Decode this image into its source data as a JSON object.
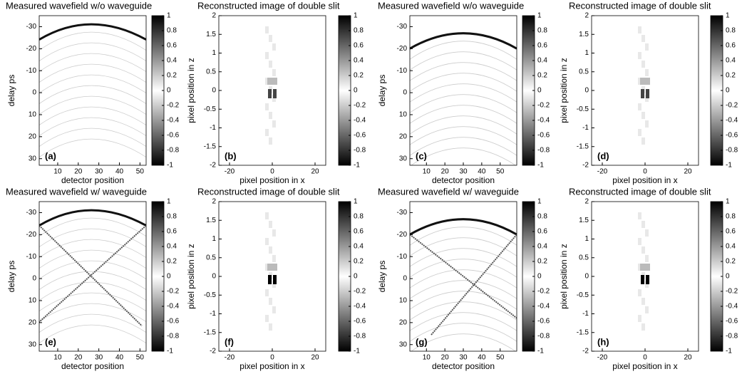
{
  "chart_data": [
    {
      "type": "heatmap",
      "title": "Measured wavefield w/o waveguide",
      "xlabel": "detector position",
      "ylabel": "delay ps",
      "panel": "(a)",
      "xlim": [
        1,
        53
      ],
      "ylim": [
        -35,
        33
      ],
      "y_reversed": true,
      "xticks": [
        10,
        20,
        30,
        40,
        50
      ],
      "yticks": [
        -30,
        -20,
        -10,
        0,
        10,
        20,
        30
      ],
      "clim": [
        -1,
        1
      ],
      "cticks": [
        -1,
        -0.8,
        -0.6,
        -0.4,
        -0.2,
        0,
        0.2,
        0.4,
        0.6,
        0.8,
        1
      ],
      "colormap": [
        "#000000",
        "#ffffff",
        "#000000"
      ]
    },
    {
      "type": "heatmap",
      "title": "Reconstructed image of double slit",
      "xlabel": "pixel position in x",
      "ylabel": "pixel position in z",
      "panel": "(b)",
      "xlim": [
        -25,
        25
      ],
      "ylim": [
        -2,
        2
      ],
      "y_reversed": false,
      "xticks": [
        -20,
        0,
        20
      ],
      "yticks": [
        -2,
        -1.5,
        -1,
        -0.5,
        0,
        0.5,
        1,
        1.5,
        2
      ],
      "clim": [
        -1,
        1
      ],
      "cticks": [
        -1,
        -0.8,
        -0.6,
        -0.4,
        -0.2,
        0,
        0.2,
        0.4,
        0.6,
        0.8,
        1
      ],
      "colormap": [
        "#000000",
        "#ffffff",
        "#000000"
      ]
    },
    {
      "type": "heatmap",
      "title": "Measured wavefield w/o waveguide",
      "xlabel": "detector position",
      "ylabel": "delay ps",
      "panel": "(c)",
      "xlim": [
        1,
        59
      ],
      "ylim": [
        -35,
        33
      ],
      "y_reversed": true,
      "xticks": [
        10,
        20,
        30,
        40,
        50
      ],
      "yticks": [
        -30,
        -20,
        -10,
        0,
        10,
        20,
        30
      ],
      "clim": [
        -1,
        1
      ],
      "cticks": [
        -1,
        -0.8,
        -0.6,
        -0.4,
        -0.2,
        0,
        0.2,
        0.4,
        0.6,
        0.8,
        1
      ],
      "colormap": [
        "#000000",
        "#ffffff",
        "#000000"
      ]
    },
    {
      "type": "heatmap",
      "title": "Reconstructed image of double slit",
      "xlabel": "pixel position in x",
      "ylabel": "pixel position in z",
      "panel": "(d)",
      "xlim": [
        -25,
        25
      ],
      "ylim": [
        -2,
        2
      ],
      "y_reversed": false,
      "xticks": [
        -20,
        0,
        20
      ],
      "yticks": [
        -2,
        -1.5,
        -1,
        -0.5,
        0,
        0.5,
        1,
        1.5,
        2
      ],
      "clim": [
        -1,
        1
      ],
      "cticks": [
        -1,
        -0.8,
        -0.6,
        -0.4,
        -0.2,
        0,
        0.2,
        0.4,
        0.6,
        0.8,
        1
      ],
      "colormap": [
        "#000000",
        "#ffffff",
        "#000000"
      ]
    },
    {
      "type": "heatmap",
      "title": "Measured wavefield w/ waveguide",
      "xlabel": "detector position",
      "ylabel": "delay ps",
      "panel": "(e)",
      "xlim": [
        1,
        53
      ],
      "ylim": [
        -35,
        33
      ],
      "y_reversed": true,
      "xticks": [
        10,
        20,
        30,
        40,
        50
      ],
      "yticks": [
        -30,
        -20,
        -10,
        0,
        10,
        20,
        30
      ],
      "clim": [
        -1,
        1
      ],
      "cticks": [
        -1,
        -0.8,
        -0.6,
        -0.4,
        -0.2,
        0,
        0.2,
        0.4,
        0.6,
        0.8,
        1
      ],
      "colormap": [
        "#000000",
        "#ffffff",
        "#000000"
      ]
    },
    {
      "type": "heatmap",
      "title": "Reconstructed image of double slit",
      "xlabel": "pixel position in x",
      "ylabel": "pixel position in z",
      "panel": "(f)",
      "xlim": [
        -25,
        25
      ],
      "ylim": [
        -2,
        2
      ],
      "y_reversed": false,
      "xticks": [
        -20,
        0,
        20
      ],
      "yticks": [
        -2,
        -1.5,
        -1,
        -0.5,
        0,
        0.5,
        1,
        1.5,
        2
      ],
      "clim": [
        -1,
        1
      ],
      "cticks": [
        -1,
        -0.8,
        -0.6,
        -0.4,
        -0.2,
        0,
        0.2,
        0.4,
        0.6,
        0.8,
        1
      ],
      "colormap": [
        "#000000",
        "#ffffff",
        "#000000"
      ]
    },
    {
      "type": "heatmap",
      "title": "Measured wavefield w/ waveguide",
      "xlabel": "detector position",
      "ylabel": "delay ps",
      "panel": "(g)",
      "xlim": [
        1,
        59
      ],
      "ylim": [
        -35,
        33
      ],
      "y_reversed": true,
      "xticks": [
        10,
        20,
        30,
        40,
        50
      ],
      "yticks": [
        -30,
        -20,
        -10,
        0,
        10,
        20,
        30
      ],
      "clim": [
        -1,
        1
      ],
      "cticks": [
        -1,
        -0.8,
        -0.6,
        -0.4,
        -0.2,
        0,
        0.2,
        0.4,
        0.6,
        0.8,
        1
      ],
      "colormap": [
        "#000000",
        "#ffffff",
        "#000000"
      ]
    },
    {
      "type": "heatmap",
      "title": "Reconstructed image of double slit",
      "xlabel": "pixel position in x",
      "ylabel": "pixel position in z",
      "panel": "(h)",
      "xlim": [
        -25,
        25
      ],
      "ylim": [
        -2,
        2
      ],
      "y_reversed": false,
      "xticks": [
        -20,
        0,
        20
      ],
      "yticks": [
        -2,
        -1.5,
        -1,
        -0.5,
        0,
        0.5,
        1,
        1.5,
        2
      ],
      "clim": [
        -1,
        1
      ],
      "cticks": [
        -1,
        -0.8,
        -0.6,
        -0.4,
        -0.2,
        0,
        0.2,
        0.4,
        0.6,
        0.8,
        1
      ],
      "colormap": [
        "#000000",
        "#ffffff",
        "#000000"
      ]
    }
  ]
}
